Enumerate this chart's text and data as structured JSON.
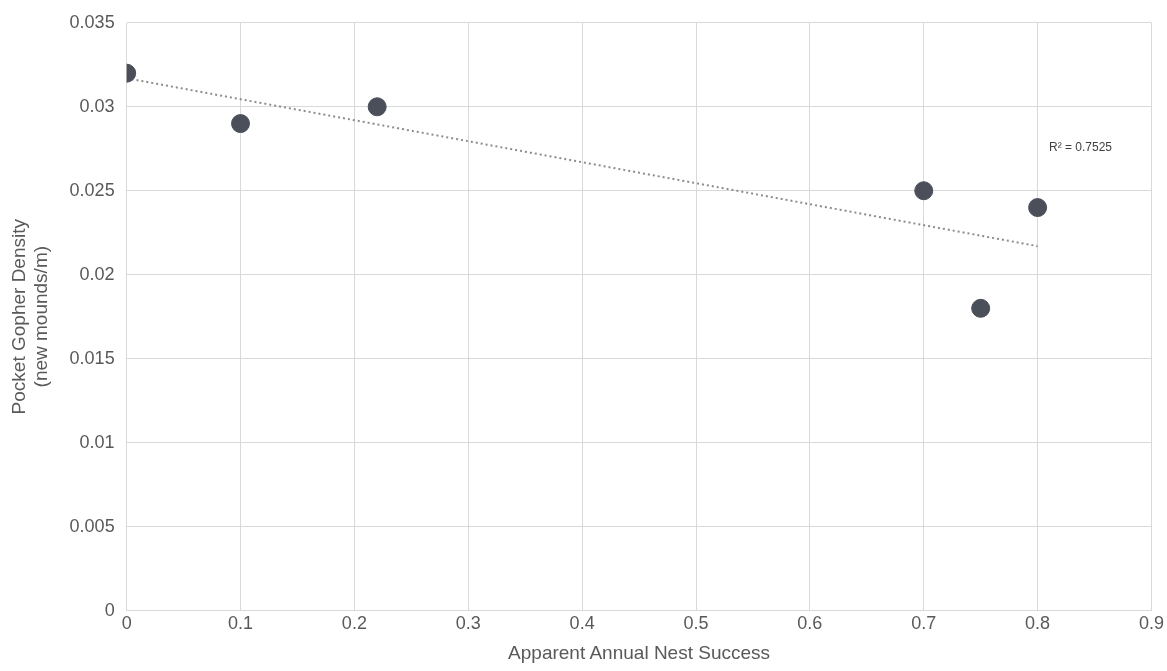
{
  "chart_data": {
    "type": "scatter",
    "xlabel": "Apparent Annual Nest Success",
    "ylabel": "Pocket Gopher Density\n(new mounds/m)",
    "series": [
      {
        "color": "#4a4f5a",
        "x": [
          0,
          0.1,
          0.22,
          0.7,
          0.75,
          0.8
        ],
        "values": [
          0.032,
          0.029,
          0.03,
          0.025,
          0.018,
          0.024
        ],
        "marker": "circle"
      },
      {
        "type": "line",
        "color": "#8c8c8c",
        "x": [
          0,
          0.8
        ],
        "values": [
          0.0317,
          0.0217
        ],
        "line_style": "dotted",
        "marker": "none"
      }
    ],
    "xlim": [
      0,
      0.9
    ],
    "xticks": [
      0,
      0.1,
      0.2,
      0.3,
      0.4,
      0.5,
      0.6,
      0.7,
      0.8,
      0.9
    ],
    "ylim": [
      0,
      0.035
    ],
    "yticks": [
      0,
      0.005,
      0.01,
      0.015,
      0.02,
      0.025,
      0.03,
      0.035
    ],
    "grid": true,
    "legend": false,
    "annotations": [
      "R² = 0.7525"
    ]
  }
}
